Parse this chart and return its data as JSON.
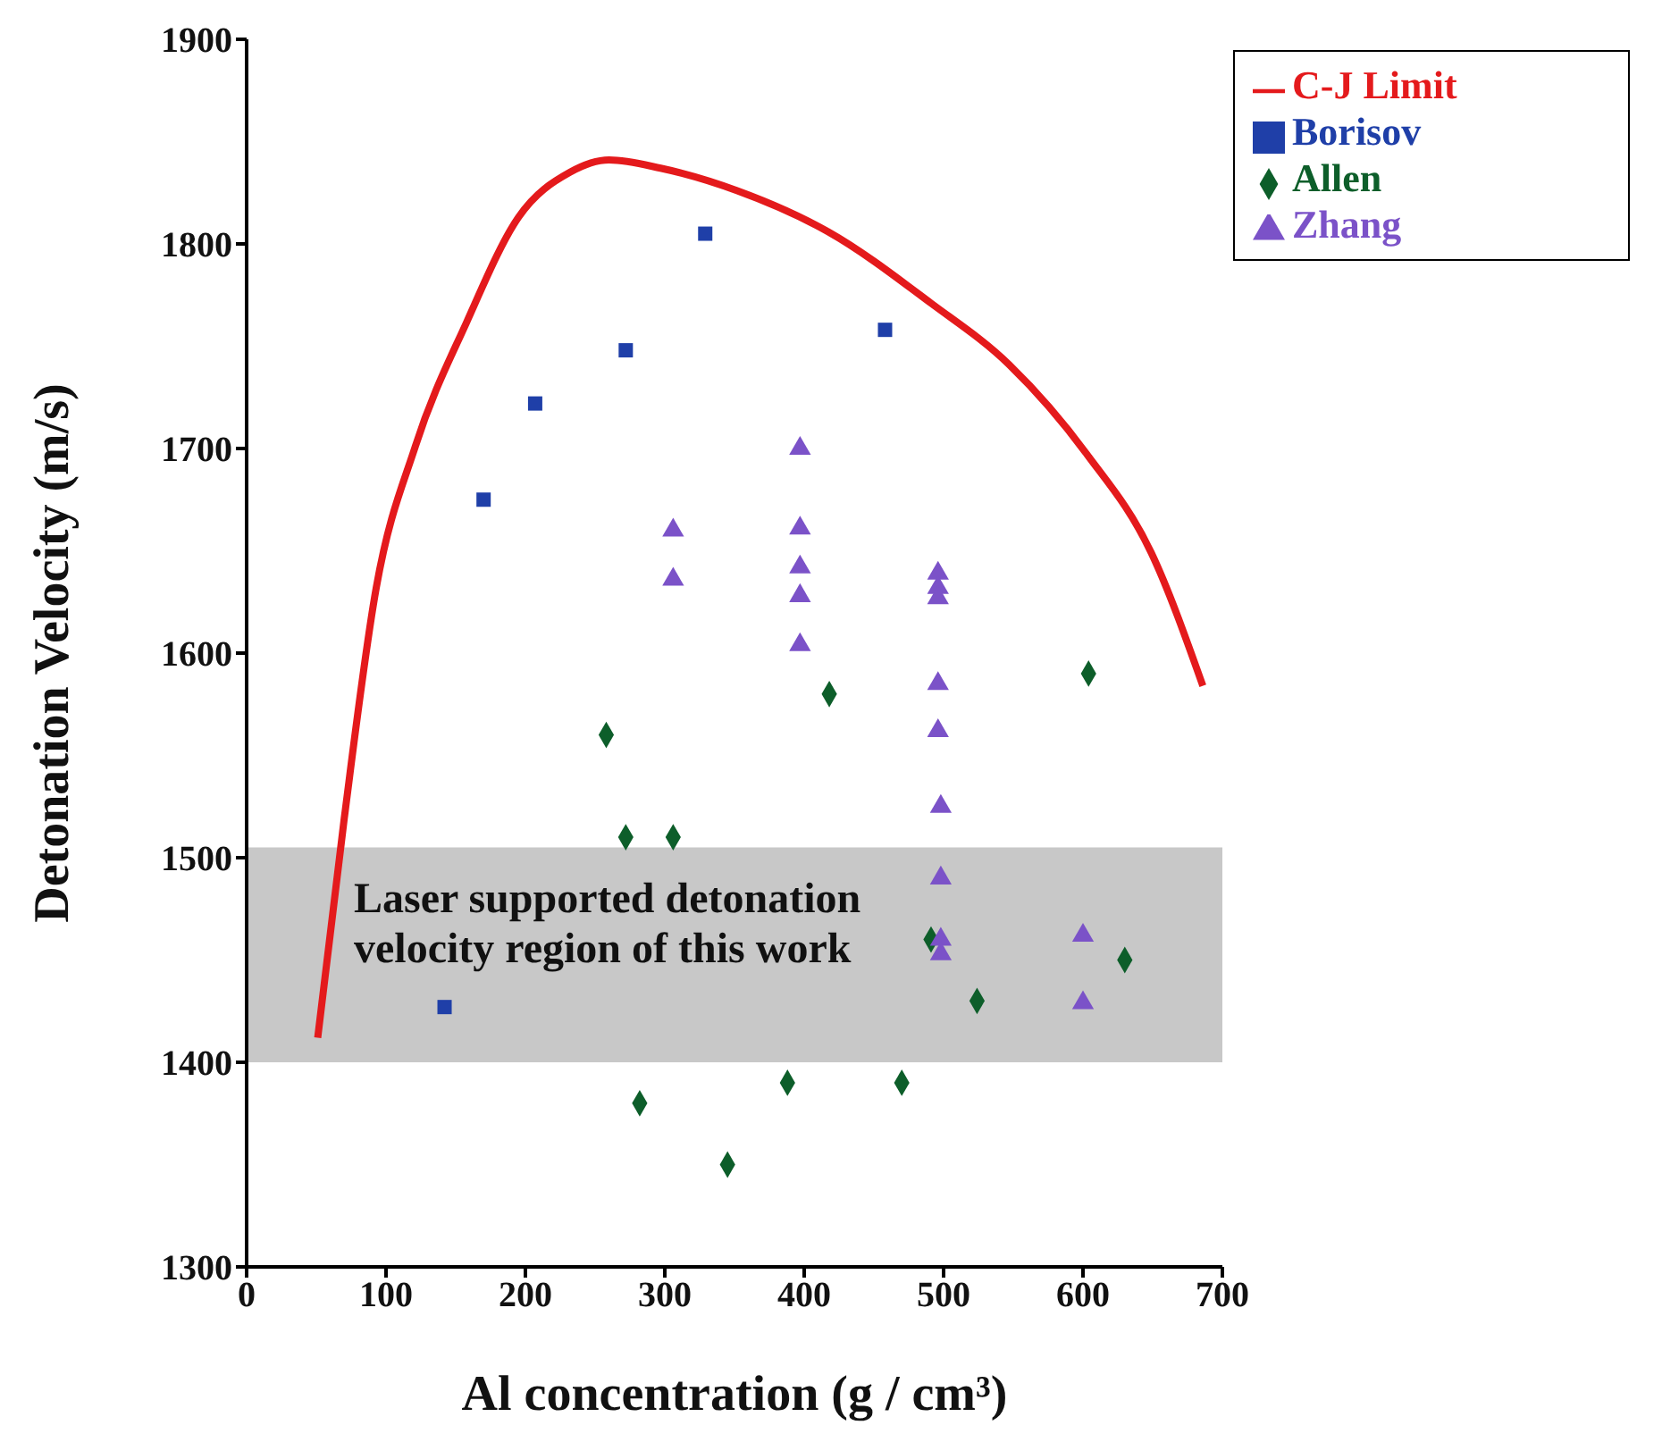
{
  "chart_data": {
    "type": "scatter",
    "xlabel": "Al concentration (g / cm³)",
    "ylabel": "Detonation Velocity (m/s)",
    "xlim": [
      0,
      700
    ],
    "xticks": [
      0,
      100,
      200,
      300,
      400,
      500,
      600,
      700
    ],
    "ylim": [
      1300,
      1900
    ],
    "yticks": [
      1300,
      1400,
      1500,
      1600,
      1700,
      1800,
      1900
    ],
    "grid": false,
    "legend": "top right",
    "bands": [
      {
        "axis": "y",
        "from": 1400,
        "to": 1505,
        "label": "Laser supported detonation velocity region of this work",
        "color": "#c8c8c8"
      }
    ],
    "series": [
      {
        "name": "C-J Limit",
        "type": "line",
        "color": "#e41a1c",
        "marker": "none",
        "x": [
          51,
          70,
          93,
          121,
          158,
          195,
          232,
          260,
          297,
          352,
          417,
          491,
          547,
          603,
          649,
          686
        ],
        "values": [
          1412,
          1519,
          1632,
          1701,
          1762,
          1813,
          1835,
          1841,
          1837,
          1826,
          1806,
          1771,
          1741,
          1697,
          1649,
          1584
        ]
      },
      {
        "name": "Borisov",
        "color": "#1f3fa8",
        "marker": "square",
        "x": [
          142,
          170,
          207,
          272,
          329,
          458
        ],
        "values": [
          1427,
          1675,
          1722,
          1748,
          1805,
          1758
        ]
      },
      {
        "name": "Allen",
        "color": "#0d5e2a",
        "marker": "diamond",
        "x": [
          258,
          272,
          306,
          282,
          345,
          388,
          397,
          418,
          470,
          491,
          524,
          604,
          630
        ],
        "values": [
          1560,
          1510,
          1510,
          1380,
          1350,
          1390,
          null,
          1580,
          1390,
          1460,
          1430,
          1590,
          1450
        ]
      },
      {
        "name": "Zhang",
        "color": "#7b52c8",
        "marker": "triangle",
        "x": [
          397,
          306,
          306,
          397,
          397,
          397,
          397,
          496,
          496,
          496,
          496,
          496,
          498,
          498,
          498,
          498,
          600,
          600
        ],
        "values": [
          1700,
          1660,
          1636,
          1661,
          1642,
          1628,
          1604,
          1639,
          1632,
          1627,
          1585,
          1562,
          1525,
          1490,
          1460,
          1453,
          1462,
          1429
        ]
      }
    ]
  }
}
